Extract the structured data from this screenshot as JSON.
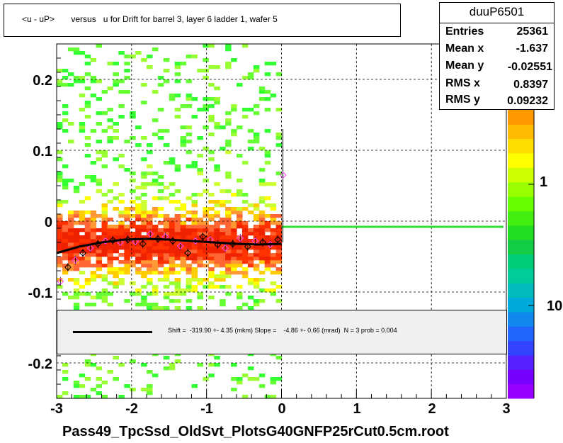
{
  "title": "<u - uP>       versus   u for Drift for barrel 3, layer 6 ladder 1, wafer 5",
  "footer": "Pass49_TpcSsd_OldSvt_PlotsG40GNFP25rCut0.5cm.root",
  "stats": {
    "name": "duuP6501",
    "rows": [
      {
        "label": "Entries",
        "value": "25361"
      },
      {
        "label": "Mean x",
        "value": "-1.637"
      },
      {
        "label": "Mean y",
        "value": "-0.02551"
      },
      {
        "label": "RMS x",
        "value": "0.8397"
      },
      {
        "label": "RMS y",
        "value": "0.09232"
      }
    ]
  },
  "fit": {
    "text": "Shift =  -319.90 +- 4.35 (mkm) Slope =    -4.86 +- 0.66 (mrad)  N = 3 prob = 0.004"
  },
  "colors": {
    "fit_curve": "#000000",
    "zero_line": "#33dd33",
    "profile_marker": "#ff44ff"
  },
  "chart_data": {
    "type": "heatmap",
    "title": "<u - uP>       versus   u for Drift for barrel 3, layer 6 ladder 1, wafer 5",
    "xlabel": "",
    "ylabel": "",
    "xlim": [
      -3,
      3
    ],
    "ylim": [
      -0.25,
      0.25
    ],
    "x_ticks": [
      "-3",
      "-2",
      "-1",
      "0",
      "1",
      "2",
      "3"
    ],
    "y_ticks": [
      "-0.2",
      "-0.1",
      "0",
      "0.1",
      "0.2"
    ],
    "z_scale": "log",
    "z_ticks": [
      "1",
      "10"
    ],
    "grid": true,
    "filled_x_range": [
      -3,
      0
    ],
    "profile_points": [
      [
        -2.95,
        -0.085
      ],
      [
        -2.85,
        -0.065
      ],
      [
        -2.75,
        -0.055
      ],
      [
        -2.65,
        -0.045
      ],
      [
        -2.55,
        -0.038
      ],
      [
        -2.45,
        -0.032
      ],
      [
        -2.35,
        -0.028
      ],
      [
        -2.25,
        -0.027
      ],
      [
        -2.15,
        -0.03
      ],
      [
        -2.05,
        -0.026
      ],
      [
        -1.95,
        -0.029
      ],
      [
        -1.85,
        -0.032
      ],
      [
        -1.75,
        -0.018
      ],
      [
        -1.65,
        -0.025
      ],
      [
        -1.55,
        -0.022
      ],
      [
        -1.45,
        -0.028
      ],
      [
        -1.35,
        -0.035
      ],
      [
        -1.25,
        -0.045
      ],
      [
        -1.15,
        -0.028
      ],
      [
        -1.05,
        -0.022
      ],
      [
        -0.95,
        -0.026
      ],
      [
        -0.85,
        -0.033
      ],
      [
        -0.75,
        -0.038
      ],
      [
        -0.65,
        -0.032
      ],
      [
        -0.55,
        -0.024
      ],
      [
        -0.45,
        -0.036
      ],
      [
        -0.35,
        -0.028
      ],
      [
        -0.25,
        -0.03
      ],
      [
        -0.15,
        -0.033
      ],
      [
        -0.05,
        -0.026
      ],
      [
        0.02,
        0.065
      ]
    ],
    "fit_curve": [
      [
        -3.0,
        -0.045
      ],
      [
        -2.7,
        -0.036
      ],
      [
        -2.4,
        -0.03
      ],
      [
        -2.1,
        -0.026
      ],
      [
        -1.8,
        -0.025
      ],
      [
        -1.5,
        -0.026
      ],
      [
        -1.2,
        -0.028
      ],
      [
        -0.9,
        -0.03
      ],
      [
        -0.6,
        -0.032
      ],
      [
        -0.3,
        -0.033
      ],
      [
        0.0,
        -0.032
      ]
    ],
    "zero_line": {
      "x": [
        0,
        3
      ],
      "y": -0.008
    }
  }
}
